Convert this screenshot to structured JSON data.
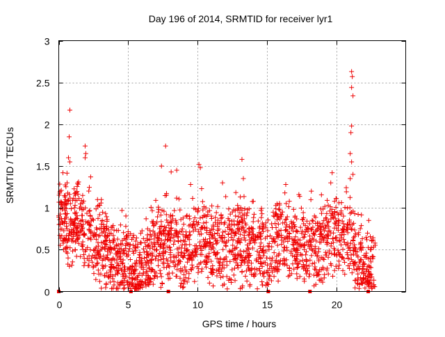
{
  "chart_data": {
    "type": "scatter",
    "title": "Day 196 of 2014, SRMTID for receiver lyr1",
    "xlabel": "GPS time / hours",
    "ylabel": "SRMTID / TECUs",
    "xlim": [
      0,
      25
    ],
    "ylim": [
      0,
      3
    ],
    "grid": true,
    "x_ticks": [
      0,
      5,
      10,
      15,
      20
    ],
    "x_tick_labels": [
      "0",
      "5",
      "10",
      "15",
      "20"
    ],
    "y_ticks": [
      0,
      0.5,
      1,
      1.5,
      2,
      2.5,
      3
    ],
    "y_tick_labels": [
      "0",
      "0.5",
      "1",
      "1.5",
      "2",
      "2.5",
      "3"
    ],
    "marker": "+",
    "series_color": "#ee0000",
    "grid_color": "#a0a0a0",
    "envelope_x": [
      0,
      0.7,
      1.5,
      2.5,
      3.5,
      4.5,
      5.5,
      6.5,
      7.2,
      8,
      9,
      10,
      11,
      12,
      13,
      14,
      15,
      16,
      17,
      18,
      19,
      19.8,
      20.5,
      21.1,
      21.6,
      22.1,
      22.8
    ],
    "envelope_y": [
      0.85,
      0.8,
      0.8,
      0.6,
      0.45,
      0.35,
      0.25,
      0.32,
      0.5,
      0.6,
      0.45,
      0.65,
      0.55,
      0.5,
      0.55,
      0.55,
      0.35,
      0.7,
      0.55,
      0.5,
      0.55,
      0.7,
      0.6,
      0.6,
      0.35,
      0.25,
      0.25
    ],
    "outliers": [
      {
        "x": 0.8,
        "y": 2.17
      },
      {
        "x": 0.75,
        "y": 1.85
      },
      {
        "x": 0.7,
        "y": 1.6
      },
      {
        "x": 0.8,
        "y": 1.55
      },
      {
        "x": 1.9,
        "y": 1.74
      },
      {
        "x": 1.95,
        "y": 1.65
      },
      {
        "x": 1.9,
        "y": 1.6
      },
      {
        "x": 2.3,
        "y": 1.37
      },
      {
        "x": 0.3,
        "y": 1.42
      },
      {
        "x": 0.6,
        "y": 1.3
      },
      {
        "x": 7.7,
        "y": 1.74
      },
      {
        "x": 7.4,
        "y": 1.5
      },
      {
        "x": 8.5,
        "y": 1.45
      },
      {
        "x": 8.1,
        "y": 1.43
      },
      {
        "x": 10.1,
        "y": 1.52
      },
      {
        "x": 10.2,
        "y": 1.48
      },
      {
        "x": 9.5,
        "y": 1.28
      },
      {
        "x": 13.2,
        "y": 1.58
      },
      {
        "x": 13.3,
        "y": 1.35
      },
      {
        "x": 11.8,
        "y": 1.3
      },
      {
        "x": 19.7,
        "y": 1.42
      },
      {
        "x": 19.6,
        "y": 1.3
      },
      {
        "x": 18.2,
        "y": 1.2
      },
      {
        "x": 21.1,
        "y": 2.63
      },
      {
        "x": 21.15,
        "y": 2.57
      },
      {
        "x": 21.1,
        "y": 2.44
      },
      {
        "x": 21.2,
        "y": 2.34
      },
      {
        "x": 21.1,
        "y": 1.98
      },
      {
        "x": 21.05,
        "y": 1.9
      },
      {
        "x": 21.0,
        "y": 1.65
      },
      {
        "x": 21.1,
        "y": 1.55
      },
      {
        "x": 21.2,
        "y": 1.4
      },
      {
        "x": 21.0,
        "y": 1.35
      }
    ],
    "axis_markers": [
      {
        "x": 0.0,
        "y": 0
      },
      {
        "x": 5.2,
        "y": 0
      },
      {
        "x": 7.9,
        "y": 0
      },
      {
        "x": 15.1,
        "y": 0
      },
      {
        "x": 18.1,
        "y": 0
      },
      {
        "x": 22.3,
        "y": 0
      }
    ]
  }
}
